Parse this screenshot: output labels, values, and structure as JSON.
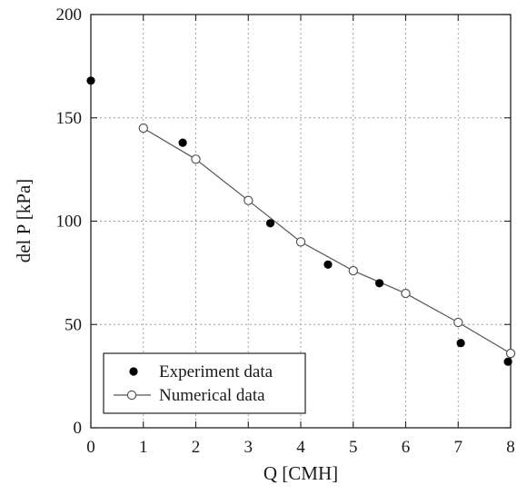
{
  "chart_data": {
    "type": "scatter",
    "title": "",
    "xlabel": "Q [CMH]",
    "ylabel": "del P [kPa]",
    "xlim": [
      0,
      8
    ],
    "ylim": [
      0,
      200
    ],
    "x_ticks": [
      "0",
      "1",
      "2",
      "3",
      "4",
      "5",
      "6",
      "7",
      "8"
    ],
    "y_ticks": [
      "0",
      "50",
      "100",
      "150",
      "200"
    ],
    "grid": true,
    "legend_position": "bottom-left",
    "series": [
      {
        "name": "Experiment data",
        "marker": "filled-circle",
        "line": false,
        "color": "#000000",
        "x": [
          0,
          1.75,
          3.42,
          4.52,
          5.5,
          7.05,
          7.95
        ],
        "y": [
          168,
          138,
          99,
          79,
          70,
          41,
          32
        ]
      },
      {
        "name": "Numerical data",
        "marker": "open-circle",
        "line": true,
        "color": "#555555",
        "x": [
          1,
          2,
          3,
          4,
          5,
          6,
          7,
          8
        ],
        "y": [
          145,
          130,
          110,
          90,
          76,
          65,
          51,
          36
        ]
      }
    ]
  }
}
